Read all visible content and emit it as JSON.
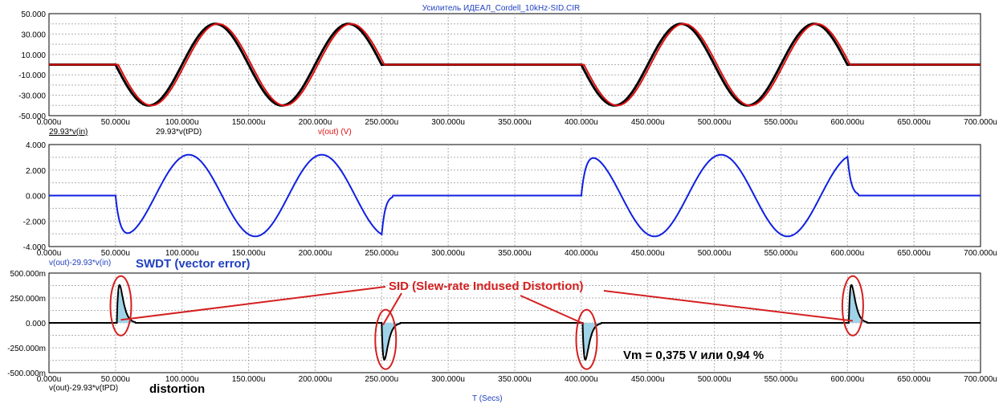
{
  "window": {
    "title": "Усилитель ИДЕАЛ_Cordell_10kHz-SID.CIR"
  },
  "colors": {
    "black": "#000000",
    "red": "#e01010",
    "blue": "#1020e0",
    "dark_red": "#a00000",
    "fill": "#9fd4e8",
    "annot_red": "#d42020",
    "label_blue": "#2040c0"
  },
  "chart_data": [
    {
      "type": "line",
      "xlabel": "",
      "x_range": [
        0,
        700
      ],
      "x_unit": "u",
      "ylim": [
        -50,
        50
      ],
      "y_ticks": [
        "50.000",
        "30.000",
        "10.000",
        "-10.000",
        "-30.000",
        "-50.000"
      ],
      "x_ticks": [
        "0.000u",
        "50.000u",
        "100.000u",
        "150.000u",
        "200.000u",
        "250.000u",
        "300.000u",
        "350.000u",
        "400.000u",
        "450.000u",
        "500.000u",
        "550.000u",
        "600.000u",
        "650.000u",
        "700.000u"
      ],
      "grid": true,
      "legend": [
        {
          "name": "29.93*v(in)",
          "color": "#000000"
        },
        {
          "name": "29.93*v(tPD)",
          "color": "#000000"
        },
        {
          "name": "v(out) (V)",
          "color": "#e01010"
        }
      ],
      "signal": {
        "amplitude": 40,
        "period_us": 100,
        "bursts_us": [
          [
            50,
            250
          ],
          [
            400,
            600
          ]
        ]
      }
    },
    {
      "type": "line",
      "x_range": [
        0,
        700
      ],
      "ylim": [
        -4,
        4
      ],
      "y_ticks": [
        "4.000",
        "2.000",
        "0.000",
        "-2.000",
        "-4.000"
      ],
      "x_ticks": [
        "0.000u",
        "50.000u",
        "100.000u",
        "150.000u",
        "200.000u",
        "250.000u",
        "300.000u",
        "350.000u",
        "400.000u",
        "450.000u",
        "500.000u",
        "550.000u",
        "600.000u",
        "650.000u",
        "700.000u"
      ],
      "grid": true,
      "series_label": "v(out)-29.93*v(in)",
      "annotation": "SWDT (vector error)",
      "amplitude": 3.2,
      "peaks_us": [
        [
          55,
          -3.0
        ],
        [
          105,
          3.2
        ],
        [
          155,
          -3.2
        ],
        [
          205,
          3.2
        ],
        [
          250,
          -3.2
        ],
        [
          405,
          3.0
        ],
        [
          455,
          -3.2
        ],
        [
          505,
          3.2
        ],
        [
          555,
          -3.2
        ],
        [
          600,
          3.2
        ]
      ]
    },
    {
      "type": "line",
      "x_range": [
        0,
        700
      ],
      "ylim": [
        -500,
        500
      ],
      "y_unit": "m",
      "y_ticks": [
        "500.000m",
        "250.000m",
        "0.000",
        "-250.000m",
        "-500.000m"
      ],
      "x_ticks": [
        "0.000u",
        "50.000u",
        "100.000u",
        "150.000u",
        "200.000u",
        "250.000u",
        "300.000u",
        "350.000u",
        "400.000u",
        "450.000u",
        "500.000u",
        "550.000u",
        "600.000u",
        "650.000u",
        "700.000u"
      ],
      "xlabel": "T (Secs)",
      "grid": true,
      "series_label": "v(out)-29.93*v(tPD)",
      "annotation": "distortion",
      "spikes_us_mV": [
        [
          51,
          380
        ],
        [
          250,
          -370
        ],
        [
          401,
          -370
        ],
        [
          601,
          380
        ]
      ],
      "sid_label": "SID (Slew-rate Indused Distortion)",
      "vm_label": "Vm = 0,375 V или 0,94 %"
    }
  ]
}
